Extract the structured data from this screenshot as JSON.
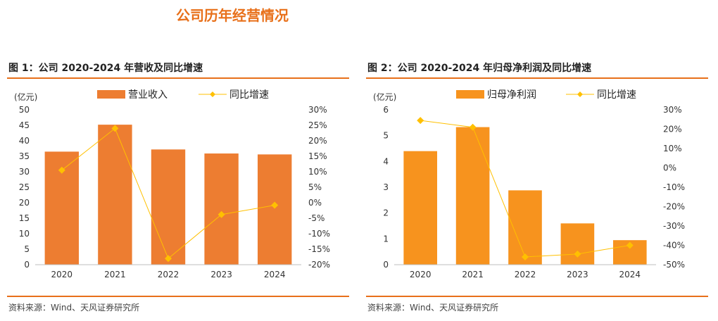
{
  "page_title": "公司历年经营情况",
  "figures": [
    {
      "title": "图 1：公司 2020-2024 年营收及同比增速",
      "source": "资料来源：Wind、天风证券研究所"
    },
    {
      "title": "图 2：公司 2020-2024 年归母净利润及同比增速",
      "source": "资料来源：Wind、天风证券研究所"
    }
  ],
  "chart_data": [
    {
      "type": "bar",
      "categories": [
        "2020",
        "2021",
        "2022",
        "2023",
        "2024"
      ],
      "series": [
        {
          "name": "营业收入",
          "type": "bar",
          "axis": "left",
          "values": [
            36.5,
            45.2,
            37.2,
            35.9,
            35.6
          ],
          "color": "#ed7d31"
        },
        {
          "name": "同比增速",
          "type": "line",
          "axis": "right",
          "values": [
            10.5,
            24.0,
            -18.0,
            -3.8,
            -0.8
          ],
          "color": "#ffc000"
        }
      ],
      "yunit_label": "(亿元)",
      "ylim": [
        0,
        50
      ],
      "yticks": [
        "0",
        "5",
        "10",
        "15",
        "20",
        "25",
        "30",
        "35",
        "40",
        "45",
        "50"
      ],
      "y2lim": [
        -20,
        30
      ],
      "y2ticks": [
        "-20%",
        "-15%",
        "-10%",
        "-5%",
        "0%",
        "5%",
        "10%",
        "15%",
        "20%",
        "25%",
        "30%"
      ],
      "legend": "top",
      "grid": false
    },
    {
      "type": "bar",
      "categories": [
        "2020",
        "2021",
        "2022",
        "2023",
        "2024"
      ],
      "series": [
        {
          "name": "归母净利润",
          "type": "bar",
          "axis": "left",
          "values": [
            4.4,
            5.33,
            2.88,
            1.6,
            0.95
          ],
          "color": "#f7931e"
        },
        {
          "name": "同比增速",
          "type": "line",
          "axis": "right",
          "values": [
            24.5,
            21.0,
            -46.0,
            -44.5,
            -40.0
          ],
          "color": "#ffc000"
        }
      ],
      "yunit_label": "(亿元)",
      "ylim": [
        0,
        6
      ],
      "yticks": [
        "0",
        "1",
        "2",
        "3",
        "4",
        "5",
        "6"
      ],
      "y2lim": [
        -50,
        30
      ],
      "y2ticks": [
        "-50%",
        "-40%",
        "-30%",
        "-20%",
        "-10%",
        "0%",
        "10%",
        "20%",
        "30%"
      ],
      "legend": "top",
      "grid": false
    }
  ]
}
